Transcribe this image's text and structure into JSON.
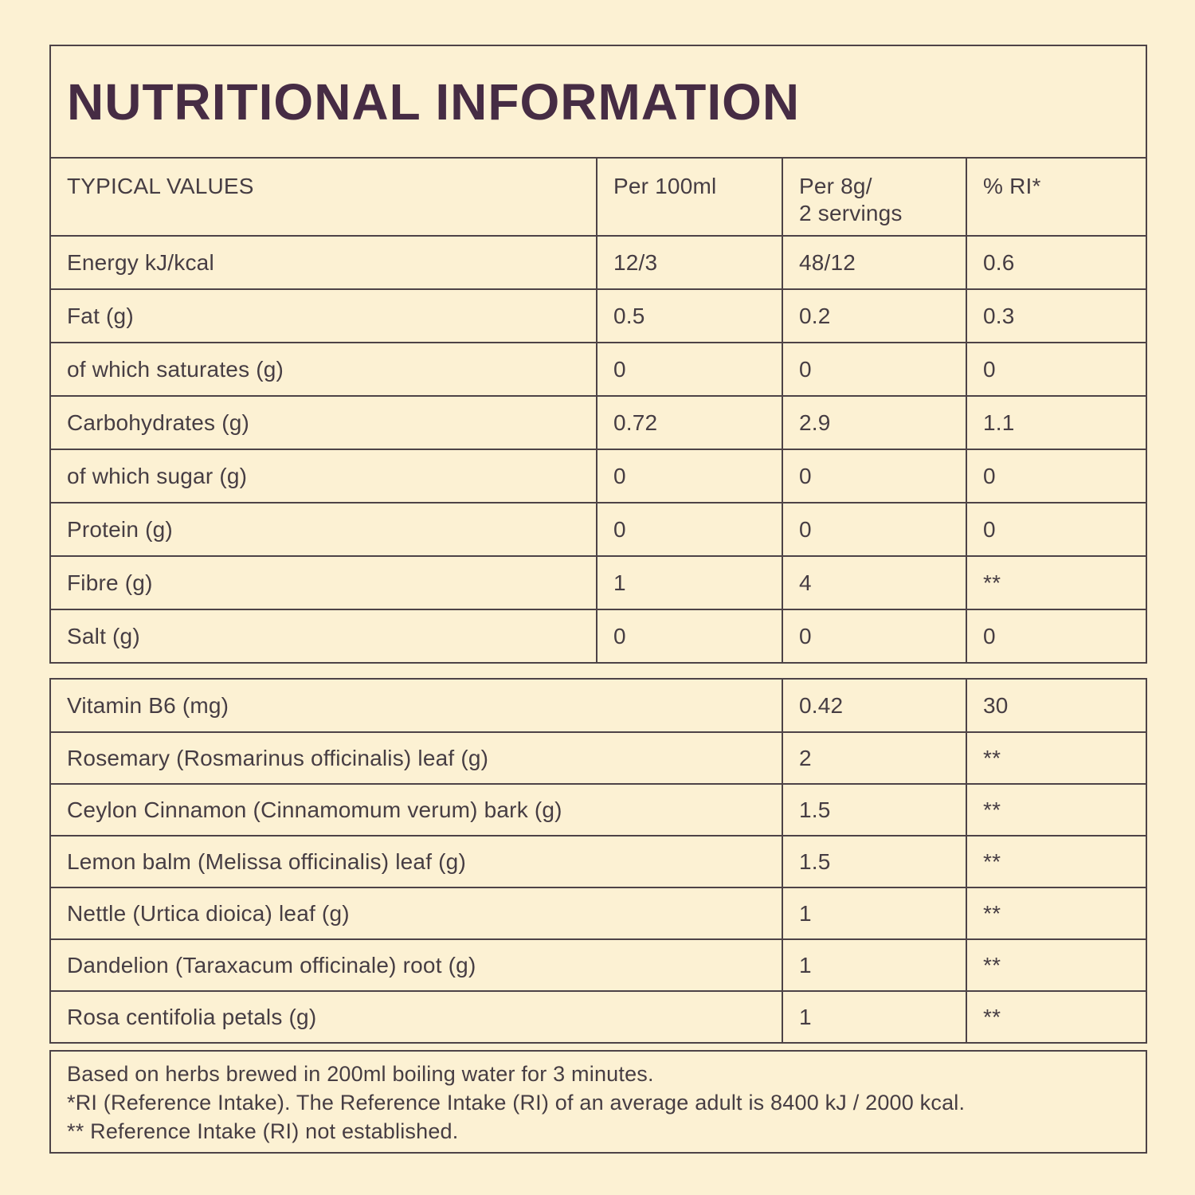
{
  "page": {
    "title": "NUTRITIONAL INFORMATION"
  },
  "colors": {
    "background": "#fcf1d3",
    "border": "#4d4347",
    "text": "#463d43",
    "title": "#462c44"
  },
  "main_table": {
    "header": {
      "col1": "TYPICAL VALUES",
      "col2": "Per 100ml",
      "col3_line1": "Per 8g/",
      "col3_line2": "2 servings",
      "col4": "% RI*"
    },
    "rows": [
      {
        "label": "Energy kJ/kcal",
        "per_100ml": "12/3",
        "per_8g": "48/12",
        "ri": "0.6"
      },
      {
        "label": "Fat (g)",
        "per_100ml": "0.5",
        "per_8g": "0.2",
        "ri": "0.3"
      },
      {
        "label": "of which saturates (g)",
        "per_100ml": "0",
        "per_8g": "0",
        "ri": "0"
      },
      {
        "label": "Carbohydrates (g)",
        "per_100ml": "0.72",
        "per_8g": "2.9",
        "ri": "1.1"
      },
      {
        "label": "of which sugar (g)",
        "per_100ml": "0",
        "per_8g": "0",
        "ri": "0"
      },
      {
        "label": "Protein (g)",
        "per_100ml": "0",
        "per_8g": "0",
        "ri": "0"
      },
      {
        "label": "Fibre (g)",
        "per_100ml": "1",
        "per_8g": "4",
        "ri": "**"
      },
      {
        "label": "Salt (g)",
        "per_100ml": "0",
        "per_8g": "0",
        "ri": "0"
      }
    ]
  },
  "herbs_table": {
    "rows": [
      {
        "label": "Vitamin B6 (mg)",
        "per_8g": "0.42",
        "ri": "30"
      },
      {
        "label": "Rosemary (Rosmarinus officinalis) leaf (g)",
        "per_8g": "2",
        "ri": "**"
      },
      {
        "label": "Ceylon Cinnamon (Cinnamomum verum) bark (g)",
        "per_8g": "1.5",
        "ri": "**"
      },
      {
        "label": "Lemon balm (Melissa officinalis) leaf (g)",
        "per_8g": "1.5",
        "ri": "**"
      },
      {
        "label": "Nettle (Urtica dioica) leaf (g)",
        "per_8g": "1",
        "ri": "**"
      },
      {
        "label": "Dandelion (Taraxacum officinale) root (g)",
        "per_8g": "1",
        "ri": "**"
      },
      {
        "label": "Rosa centifolia petals (g)",
        "per_8g": "1",
        "ri": "**"
      }
    ]
  },
  "footnotes": {
    "line1": "Based on herbs brewed in 200ml boiling water for 3 minutes.",
    "line2": "*RI (Reference Intake). The Reference Intake (RI) of an average adult is 8400 kJ / 2000 kcal.",
    "line3": "** Reference Intake (RI) not established."
  }
}
